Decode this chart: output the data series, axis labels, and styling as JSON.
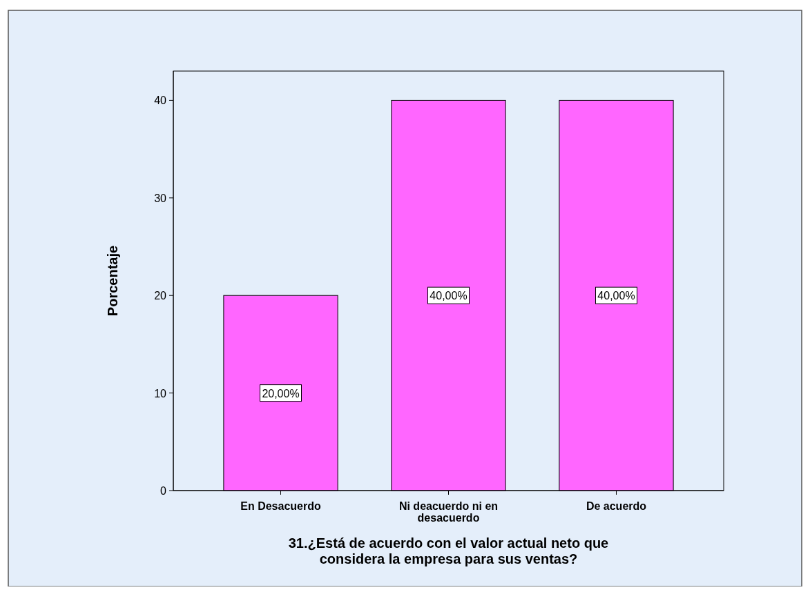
{
  "chart_data": {
    "type": "bar",
    "xlabel": "31.¿Está de acuerdo con el valor actual neto que considera la empresa para sus ventas?",
    "ylabel": "Porcentaje",
    "categories": [
      "En Desacuerdo",
      "Ni deacuerdo ni en desacuerdo",
      "De acuerdo"
    ],
    "values": [
      20,
      40,
      40
    ],
    "value_labels": [
      "20,00%",
      "40,00%",
      "40,00%"
    ],
    "color": "#ff66ff",
    "ylim": [
      0,
      43
    ],
    "yticks": [
      0,
      10,
      20,
      30,
      40
    ],
    "grid": false
  }
}
